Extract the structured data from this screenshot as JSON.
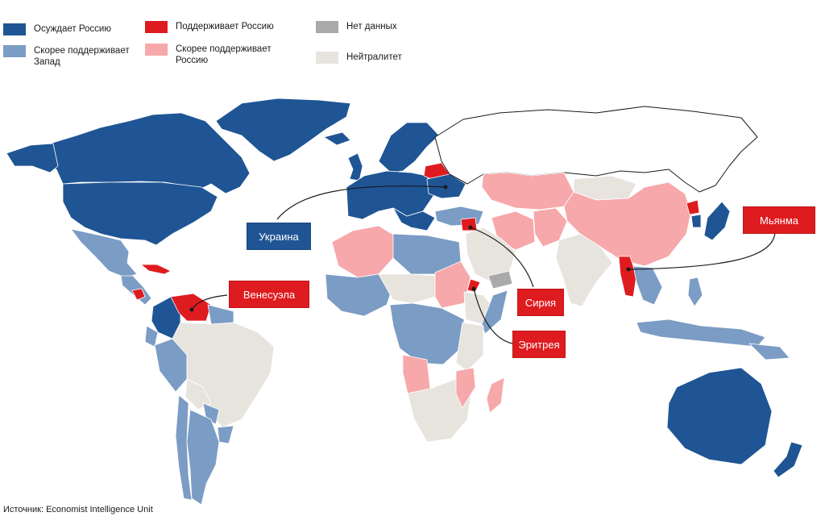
{
  "legend": {
    "items": [
      {
        "key": "condemns",
        "label": "Осуждает Россию",
        "color": "#1f5594"
      },
      {
        "key": "leans_west",
        "label": "Скорее поддерживает\nЗапад",
        "color": "#7b9cc4"
      },
      {
        "key": "supports",
        "label": "Поддерживает Россию",
        "color": "#de1b1f"
      },
      {
        "key": "leans_russia",
        "label": "Скорее поддерживает\nРоссию",
        "color": "#f7a8aa"
      },
      {
        "key": "no_data",
        "label": "Нет данных",
        "color": "#aaaaaa"
      },
      {
        "key": "neutral",
        "label": "Нейтралитет",
        "color": "#e7e4de"
      }
    ]
  },
  "callouts": [
    {
      "key": "ukraine",
      "label": "Украина",
      "color": "#1f5594"
    },
    {
      "key": "venezuela",
      "label": "Венесуэла",
      "color": "#de1b1f"
    },
    {
      "key": "myanmar",
      "label": "Мьянма",
      "color": "#de1b1f"
    },
    {
      "key": "syria",
      "label": "Сирия",
      "color": "#de1b1f"
    },
    {
      "key": "eritrea",
      "label": "Эритрея",
      "color": "#de1b1f"
    }
  ],
  "source": "Источник: Economist Intelligence Unit"
}
